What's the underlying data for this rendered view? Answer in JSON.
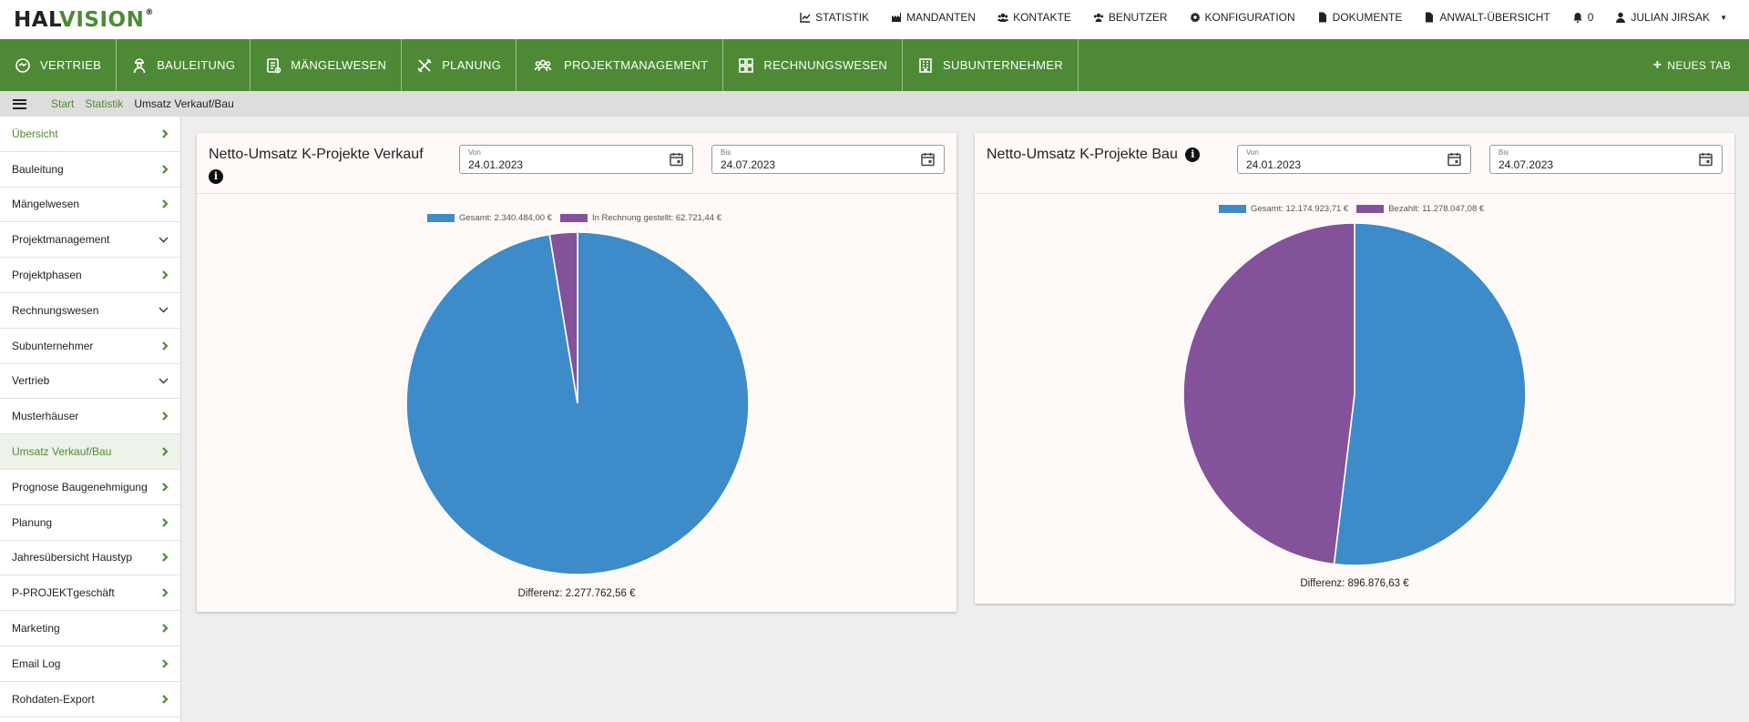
{
  "brand": {
    "logo_part1": "HAL",
    "logo_part2": "VISION",
    "logo_reg": "®"
  },
  "topnav": {
    "statistik": "STATISTIK",
    "mandanten": "MANDANTEN",
    "kontakte": "KONTAKTE",
    "benutzer": "BENUTZER",
    "konfiguration": "KONFIGURATION",
    "dokumente": "DOKUMENTE",
    "anwalt": "ANWALT-ÜBERSICHT",
    "notifications": "0",
    "user": "JULIAN JIRSAK"
  },
  "mainnav": {
    "tabs": [
      {
        "label": "VERTRIEB",
        "icon": "handshake-icon"
      },
      {
        "label": "BAULEITUNG",
        "icon": "worker-icon"
      },
      {
        "label": "MÄNGELWESEN",
        "icon": "clipboard-icon"
      },
      {
        "label": "PLANUNG",
        "icon": "tools-icon"
      },
      {
        "label": "PROJEKTMANAGEMENT",
        "icon": "users-icon"
      },
      {
        "label": "RECHNUNGSWESEN",
        "icon": "grid-icon"
      },
      {
        "label": "SUBUNTERNEHMER",
        "icon": "building-icon"
      }
    ],
    "new_tab": "NEUES TAB"
  },
  "breadcrumb": {
    "start": "Start",
    "statistik": "Statistik",
    "current": "Umsatz Verkauf/Bau"
  },
  "sidebar": {
    "items": [
      {
        "label": "Übersicht",
        "type": "right",
        "state": "green"
      },
      {
        "label": "Bauleitung",
        "type": "right"
      },
      {
        "label": "Mängelwesen",
        "type": "right"
      },
      {
        "label": "Projektmanagement",
        "type": "down"
      },
      {
        "label": "Projektphasen",
        "type": "right"
      },
      {
        "label": "Rechnungswesen",
        "type": "down"
      },
      {
        "label": "Subunternehmer",
        "type": "right"
      },
      {
        "label": "Vertrieb",
        "type": "down"
      },
      {
        "label": "Musterhäuser",
        "type": "right"
      },
      {
        "label": "Umsatz Verkauf/Bau",
        "type": "right",
        "state": "active"
      },
      {
        "label": "Prognose Baugenehmigung",
        "type": "right"
      },
      {
        "label": "Planung",
        "type": "right"
      },
      {
        "label": "Jahresübersicht Haustyp",
        "type": "right"
      },
      {
        "label": "P-PROJEKTgeschäft",
        "type": "right"
      },
      {
        "label": "Marketing",
        "type": "right"
      },
      {
        "label": "Email Log",
        "type": "right"
      },
      {
        "label": "Rohdaten-Export",
        "type": "right"
      }
    ]
  },
  "colors": {
    "brand_green": "#4e8a35",
    "series_blue": "#3d8bc9",
    "series_purple": "#83529b"
  },
  "card_verkauf": {
    "title": "Netto-Umsatz K-Projekte Verkauf",
    "von_label": "Von",
    "von_value": "24.01.2023",
    "bis_label": "Bis",
    "bis_value": "24.07.2023",
    "legend_1": "Gesamt: 2.340.484,00 €",
    "legend_2": "In Rechnung gestellt: 62.721,44 €",
    "difference": "Differenz: 2.277.762,56 €"
  },
  "card_bau": {
    "title": "Netto-Umsatz K-Projekte Bau",
    "von_label": "Von",
    "von_value": "24.01.2023",
    "bis_label": "Bis",
    "bis_value": "24.07.2023",
    "legend_1": "Gesamt: 12.174.923,71 €",
    "legend_2": "Bezahlt: 11.278.047,08 €",
    "difference": "Differenz: 896.876,63 €"
  },
  "chart_data": [
    {
      "type": "pie",
      "title": "Netto-Umsatz K-Projekte Verkauf",
      "labels": [
        "Gesamt",
        "In Rechnung gestellt"
      ],
      "values": [
        2340484.0,
        62721.44
      ],
      "colors": [
        "#3d8bc9",
        "#83529b"
      ],
      "legend": "top"
    },
    {
      "type": "pie",
      "title": "Netto-Umsatz K-Projekte Bau",
      "labels": [
        "Gesamt",
        "Bezahlt"
      ],
      "values": [
        12174923.71,
        11278047.08
      ],
      "colors": [
        "#3d8bc9",
        "#83529b"
      ],
      "legend": "top"
    }
  ]
}
